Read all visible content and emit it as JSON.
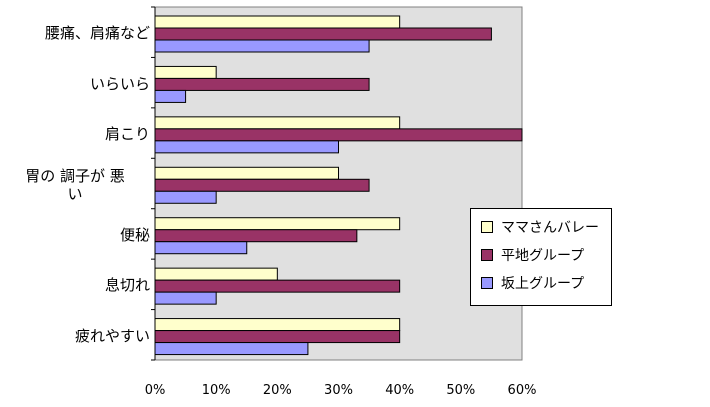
{
  "chart_data": {
    "type": "bar",
    "orientation": "horizontal",
    "categories": [
      "腰痛、肩痛など",
      "いらいら",
      "肩こり",
      "胃の調子が悪い",
      "便秘",
      "息切れ",
      "疲れやすい"
    ],
    "category_display": [
      "腰痛、肩痛など",
      "いらいら",
      "肩こり",
      "胃の 調子が 悪\nい",
      "便秘",
      "息切れ",
      "疲れやすい"
    ],
    "series": [
      {
        "name": "ママさんバレー",
        "color": "#ffffcc",
        "values": [
          40,
          10,
          40,
          30,
          40,
          20,
          40
        ]
      },
      {
        "name": "平地グループ",
        "color": "#993366",
        "values": [
          55,
          35,
          60,
          35,
          33,
          40,
          40
        ]
      },
      {
        "name": "坂上グループ",
        "color": "#9999ff",
        "values": [
          35,
          5,
          30,
          10,
          15,
          10,
          25
        ]
      }
    ],
    "xlim": [
      0,
      60
    ],
    "xticks": [
      "0%",
      "10%",
      "20%",
      "30%",
      "40%",
      "50%",
      "60%"
    ],
    "plot_background": "#e0e0e0",
    "legend_position": "right"
  }
}
